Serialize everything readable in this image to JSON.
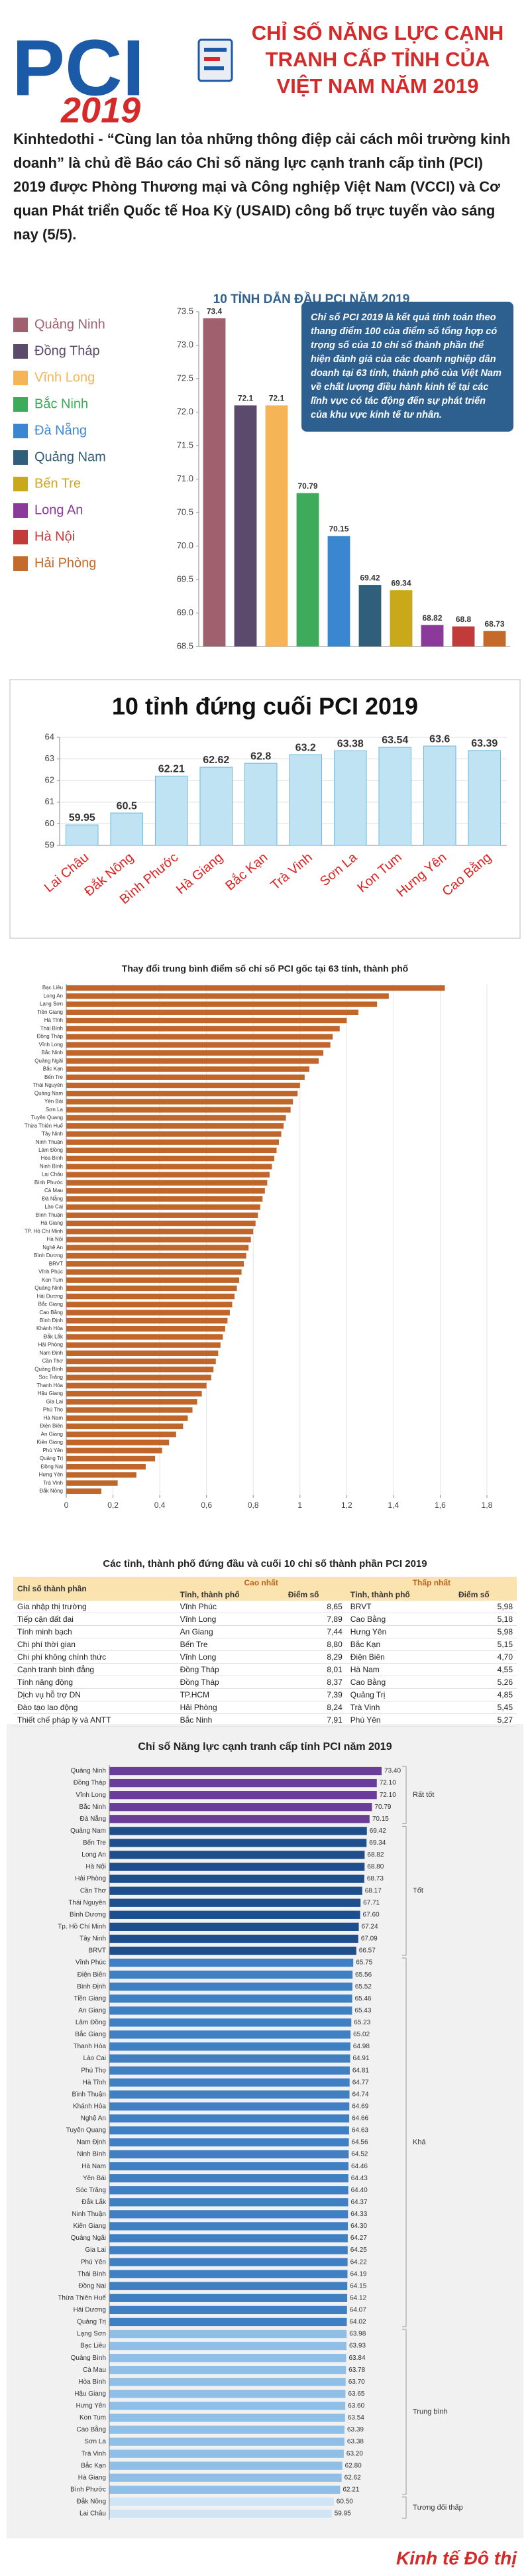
{
  "header": {
    "logo": "PCI",
    "logo_year": "2019",
    "title_lines": [
      "CHỈ SỐ NĂNG LỰC CẠNH",
      "TRANH CẤP TỈNH CỦA",
      "VIỆT NAM NĂM 2019"
    ]
  },
  "intro": "Kinhtedothi - “Cùng lan tỏa những thông điệp cải cách môi trường kinh doanh” là chủ đề Báo cáo Chỉ số năng lực cạnh tranh cấp tỉnh (PCI) 2019 được Phòng Thương mại và Công nghiệp Việt Nam (VCCI) và Cơ quan Phát triển Quốc tế Hoa Kỳ (USAID) công bố trực tuyến vào sáng nay (5/5).",
  "chart_data": [
    {
      "type": "bar",
      "title": "10 TỈNH DẪN ĐẦU PCI NĂM 2019",
      "note": "Chỉ số PCI 2019 là kết quả tính toán theo thang điểm 100 của điểm số tổng hợp có trọng số của 10 chỉ số thành phần thể hiện đánh giá của các doanh nghiệp dân doanh tại 63 tỉnh, thành phố của Việt Nam về chất lượng điều hành kinh tế tại các lĩnh vực có tác động đến sự phát triển của khu vực kinh tế tư nhân.",
      "categories": [
        "Quảng Ninh",
        "Đồng Tháp",
        "Vĩnh Long",
        "Bắc Ninh",
        "Đà Nẵng",
        "Quảng Nam",
        "Bến Tre",
        "Long An",
        "Hà Nội",
        "Hải Phòng"
      ],
      "values": [
        73.4,
        72.1,
        72.1,
        70.79,
        70.15,
        69.42,
        69.34,
        68.82,
        68.8,
        68.73
      ],
      "colors": [
        "#a0616e",
        "#5b4a6b",
        "#f5b455",
        "#3dab5a",
        "#3b86d0",
        "#2f5f7a",
        "#c9a81a",
        "#8b3a9b",
        "#c23b3b",
        "#c46a2a"
      ],
      "ylim": [
        68.5,
        73.5
      ],
      "yticks": [
        68.5,
        {
          "value": 69,
          "label": "69.0"
        },
        69.5,
        {
          "value": 70,
          "label": "70.0"
        },
        70.5,
        {
          "value": 71,
          "label": "71.0"
        },
        71.5,
        {
          "value": 72,
          "label": "72.0"
        },
        72.5,
        {
          "value": 73,
          "label": "73.0"
        },
        73.5
      ],
      "grid": false,
      "legend": "left"
    },
    {
      "type": "bar",
      "title": "10 tỉnh đứng cuối PCI 2019",
      "categories": [
        "Lai Châu",
        "Đắk Nông",
        "Bình Phước",
        "Hà Giang",
        "Bắc Kạn",
        "Trà Vinh",
        "Sơn La",
        "Kon Tum",
        "Hưng Yên",
        "Cao Bằng"
      ],
      "values": [
        59.95,
        60.5,
        62.21,
        62.62,
        62.8,
        63.2,
        63.38,
        63.54,
        63.6,
        63.39
      ],
      "color": "#bfe3f3",
      "ylim": [
        59,
        64
      ],
      "yticks": [
        59,
        60,
        61,
        62,
        63,
        64
      ],
      "grid": true
    },
    {
      "type": "barh",
      "title": "Thay đổi trung bình điểm số chỉ số PCI gốc tại 63 tỉnh, thành phố",
      "categories": [
        "Bạc Liêu",
        "Long An",
        "Lạng Sơn",
        "Tiền Giang",
        "Hà Tĩnh",
        "Thái Bình",
        "Đồng Tháp",
        "Vĩnh Long",
        "Bắc Ninh",
        "Quảng Ngãi",
        "Bắc Kạn",
        "Bến Tre",
        "Thái Nguyên",
        "Quảng Nam",
        "Yên Bái",
        "Sơn La",
        "Tuyên Quang",
        "Thừa Thiên Huế",
        "Tây Ninh",
        "Ninh Thuận",
        "Lâm Đồng",
        "Hòa Bình",
        "Ninh Bình",
        "Lai Châu",
        "Bình Phước",
        "Cà Mau",
        "Đà Nẵng",
        "Lào Cai",
        "Bình Thuận",
        "Hà Giang",
        "TP. Hồ Chí Minh",
        "Hà Nội",
        "Nghệ An",
        "Bình Dương",
        "BRVT",
        "Vĩnh Phúc",
        "Kon Tum",
        "Quảng Ninh",
        "Hải Dương",
        "Bắc Giang",
        "Cao Bằng",
        "Bình Định",
        "Khánh Hòa",
        "Đắk Lắk",
        "Hải Phòng",
        "Nam Định",
        "Cần Thơ",
        "Quảng Bình",
        "Sóc Trăng",
        "Thanh Hóa",
        "Hậu Giang",
        "Gia Lai",
        "Phú Thọ",
        "Hà Nam",
        "Điện Biên",
        "An Giang",
        "Kiên Giang",
        "Phú Yên",
        "Quảng Trị",
        "Đồng Nai",
        "Hưng Yên",
        "Trà Vinh",
        "Đắk Nông"
      ],
      "values": [
        1.62,
        1.38,
        1.33,
        1.25,
        1.2,
        1.17,
        1.14,
        1.13,
        1.1,
        1.08,
        1.04,
        1.02,
        1.0,
        0.99,
        0.97,
        0.96,
        0.94,
        0.93,
        0.92,
        0.91,
        0.9,
        0.89,
        0.88,
        0.87,
        0.86,
        0.85,
        0.84,
        0.83,
        0.82,
        0.81,
        0.8,
        0.79,
        0.78,
        0.77,
        0.76,
        0.75,
        0.74,
        0.73,
        0.72,
        0.71,
        0.7,
        0.69,
        0.68,
        0.67,
        0.66,
        0.65,
        0.64,
        0.63,
        0.62,
        0.6,
        0.58,
        0.56,
        0.54,
        0.52,
        0.5,
        0.47,
        0.44,
        0.41,
        0.38,
        0.34,
        0.3,
        0.22,
        0.15
      ],
      "color": "#c0662a",
      "xlim": [
        0,
        1.8
      ],
      "xticks": [
        0,
        {
          "value": 0.2,
          "label": "0,2"
        },
        {
          "value": 0.4,
          "label": "0,4"
        },
        {
          "value": 0.6,
          "label": "0,6"
        },
        {
          "value": 0.8,
          "label": "0,8"
        },
        1,
        {
          "value": 1.2,
          "label": "1,2"
        },
        {
          "value": 1.4,
          "label": "1,4"
        },
        {
          "value": 1.6,
          "label": "1,6"
        },
        {
          "value": 1.8,
          "label": "1,8"
        }
      ],
      "grid": true
    },
    {
      "type": "barh",
      "title": "Chỉ số Năng lực cạnh tranh cấp tỉnh PCI năm 2019",
      "xlim": [
        0,
        75
      ],
      "series": [
        {
          "name": "Rất tốt",
          "color": "#6a3d9a",
          "categories": [
            "Quảng Ninh",
            "Đồng Tháp",
            "Vĩnh Long",
            "Bắc Ninh",
            "Đà Nẵng"
          ],
          "values": [
            73.4,
            72.1,
            72.1,
            70.79,
            70.15
          ],
          "value_labels": [
            "73.40",
            "72.10",
            "72.10",
            "70.79",
            "70.15"
          ]
        },
        {
          "name": "Tốt",
          "color": "#1f4e8c",
          "categories": [
            "Quảng Nam",
            "Bến Tre",
            "Long An",
            "Hà Nội",
            "Hải Phòng",
            "Cần Thơ",
            "Thái Nguyên",
            "Bình Dương",
            "Tp. Hồ Chí Minh",
            "Tây Ninh",
            "BRVT"
          ],
          "values": [
            69.42,
            69.34,
            68.82,
            68.8,
            68.73,
            68.17,
            67.71,
            67.6,
            67.24,
            67.09,
            66.57
          ],
          "value_labels": [
            "69.42",
            "69.34",
            "68.82",
            "68.80",
            "68.73",
            "68.17",
            "67.71",
            "67.60",
            "67.24",
            "67.09",
            "66.57"
          ]
        },
        {
          "name": "Khá",
          "color": "#3f7fc4",
          "categories": [
            "Vĩnh Phúc",
            "Điện Biên",
            "Bình Định",
            "Tiền Giang",
            "An Giang",
            "Lâm Đồng",
            "Bắc Giang",
            "Thanh Hóa",
            "Lào Cai",
            "Phú Thọ",
            "Hà Tĩnh",
            "Bình Thuận",
            "Khánh Hòa",
            "Nghệ An",
            "Tuyên Quang",
            "Nam Định",
            "Ninh Bình",
            "Hà Nam",
            "Yên Bái",
            "Sóc Trăng",
            "Đắk Lắk",
            "Ninh Thuận",
            "Kiên Giang",
            "Quảng Ngãi",
            "Gia Lai",
            "Phú Yên",
            "Thái Bình",
            "Đồng Nai",
            "Thừa Thiên Huế",
            "Hải Dương",
            "Quảng Trị"
          ],
          "values": [
            65.75,
            65.56,
            65.52,
            65.46,
            65.43,
            65.23,
            65.02,
            64.98,
            64.91,
            64.81,
            64.77,
            64.74,
            64.69,
            64.66,
            64.63,
            64.56,
            64.52,
            64.46,
            64.43,
            64.4,
            64.37,
            64.33,
            64.3,
            64.27,
            64.25,
            64.22,
            64.19,
            64.15,
            64.12,
            64.07,
            64.02
          ],
          "value_labels": [
            "65.75",
            "65.56",
            "65.52",
            "65.46",
            "65.43",
            "65.23",
            "65.02",
            "64.98",
            "64.91",
            "64.81",
            "64.77",
            "64.74",
            "64.69",
            "64.66",
            "64.63",
            "64.56",
            "64.52",
            "64.46",
            "64.43",
            "64.40",
            "64.37",
            "64.33",
            "64.30",
            "64.27",
            "64.25",
            "64.22",
            "64.19",
            "64.15",
            "64.12",
            "64.07",
            "64.02"
          ]
        },
        {
          "name": "Trung bình",
          "color": "#8fbfe6",
          "categories": [
            "Lạng Sơn",
            "Bạc Liêu",
            "Quảng Bình",
            "Cà Mau",
            "Hòa Bình",
            "Hậu Giang",
            "Hưng Yên",
            "Kon Tum",
            "Cao Bằng",
            "Sơn La",
            "Trà Vinh",
            "Bắc Kạn",
            "Hà Giang",
            "Bình Phước"
          ],
          "values": [
            63.98,
            63.93,
            63.84,
            63.78,
            63.7,
            63.65,
            63.6,
            63.54,
            63.39,
            63.38,
            63.2,
            62.8,
            62.62,
            62.21
          ],
          "value_labels": [
            "63.98",
            "63.93",
            "63.84",
            "63.78",
            "63.70",
            "63.65",
            "63.60",
            "63.54",
            "63.39",
            "63.38",
            "63.20",
            "62.80",
            "62.62",
            "62.21"
          ]
        },
        {
          "name": "Tương đối thấp",
          "color": "#cfe4f5",
          "categories": [
            "Đắk Nông",
            "Lai Châu"
          ],
          "values": [
            60.5,
            59.95
          ],
          "value_labels": [
            "60.50",
            "59.95"
          ]
        }
      ]
    }
  ],
  "table": {
    "title": "Các tỉnh, thành phố đứng đầu và cuối 10 chỉ số thành phần PCI 2019",
    "groups": [
      "Cao nhất",
      "Thấp nhất"
    ],
    "columns": [
      "Chỉ số thành phần",
      "Tỉnh, thành phố",
      "Điểm số",
      "Tỉnh, thành phố",
      "Điểm số"
    ],
    "rows": [
      [
        "Gia nhập thị trường",
        "Vĩnh Phúc",
        "8,65",
        "BRVT",
        "5,98"
      ],
      [
        "Tiếp cận đất đai",
        "Vĩnh Long",
        "7,89",
        "Cao Bằng",
        "5,18"
      ],
      [
        "Tính minh bạch",
        "An Giang",
        "7,44",
        "Hưng Yên",
        "5,98"
      ],
      [
        "Chi phí thời gian",
        "Bến Tre",
        "8,80",
        "Bắc Kạn",
        "5,15"
      ],
      [
        "Chi phí không chính thức",
        "Vĩnh Long",
        "8,29",
        "Điện Biên",
        "4,70"
      ],
      [
        "Cạnh tranh bình đẳng",
        "Đồng Tháp",
        "8,01",
        "Hà Nam",
        "4,55"
      ],
      [
        "Tính năng động",
        "Đồng Tháp",
        "8,37",
        "Cao Bằng",
        "5,26"
      ],
      [
        "Dịch vụ hỗ trợ DN",
        "TP.HCM",
        "7,39",
        "Quảng Trị",
        "4,85"
      ],
      [
        "Đào tạo lao động",
        "Hải Phòng",
        "8,24",
        "Trà Vinh",
        "5,45"
      ],
      [
        "Thiết chế pháp lý và ANTT",
        "Bắc Ninh",
        "7,91",
        "Phú Yên",
        "5,27"
      ]
    ]
  },
  "footer": {
    "logo": "Kinh tế Đô thị"
  }
}
